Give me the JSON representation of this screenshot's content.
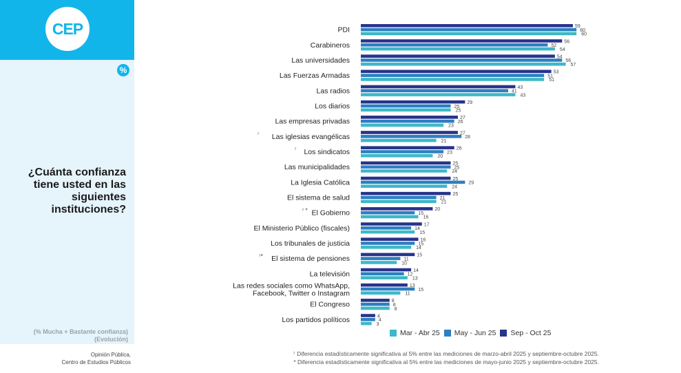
{
  "sidebar": {
    "logo_text": "CEP",
    "percent_badge": "%",
    "question": "¿Cuánta confianza tiene usted en las siguientes instituciones?",
    "subtitle_line1": "(% Mucha + Bastante confianza)",
    "subtitle_line2": "(Evolución)",
    "source_line1": "Opinión Pública,",
    "source_line2": "Centro de Estudios Públicos",
    "brand_color": "#12b5ea"
  },
  "notes": {
    "note1": "⁷ Diferencia estadísticamente significativa al 5% entre las mediciones de marzo-abril 2025 y septiembre-octubre 2025.",
    "note2": "* Diferencia estadísticamente significativa al 5% entre las mediciones de mayo-junio 2025 y septiembre-octubre 2025."
  },
  "chart_data": {
    "type": "bar",
    "orientation": "horizontal",
    "title": "¿Cuánta confianza tiene usted en las siguientes instituciones?",
    "subtitle": "(% Mucha + Bastante confianza) (Evolución)",
    "xlabel": "",
    "ylabel": "",
    "xlim": [
      0,
      62
    ],
    "grid": false,
    "legend_position": "bottom-right",
    "categories": [
      {
        "label": "PDI",
        "marker": ""
      },
      {
        "label": "Carabineros",
        "marker": ""
      },
      {
        "label": "Las universidades",
        "marker": ""
      },
      {
        "label": "Las Fuerzas Armadas",
        "marker": ""
      },
      {
        "label": "Las radios",
        "marker": ""
      },
      {
        "label": "Los diarios",
        "marker": ""
      },
      {
        "label": "Las empresas privadas",
        "marker": ""
      },
      {
        "label": "Las iglesias evangélicas",
        "marker": "⁷"
      },
      {
        "label": "Los sindicatos",
        "marker": "⁷"
      },
      {
        "label": "Las municipalidades",
        "marker": ""
      },
      {
        "label": "La Iglesia Católica",
        "marker": ""
      },
      {
        "label": "El sistema de salud",
        "marker": ""
      },
      {
        "label": "El Gobierno",
        "marker": "⁷ *"
      },
      {
        "label": "El Ministerio Público (fiscales)",
        "marker": ""
      },
      {
        "label": "Los tribunales de justicia",
        "marker": ""
      },
      {
        "label": "El sistema de pensiones",
        "marker": "⁷*"
      },
      {
        "label": "La televisión",
        "marker": ""
      },
      {
        "label": "Las redes sociales como WhatsApp, Facebook, Twitter o Instagram",
        "marker": ""
      },
      {
        "label": "El Congreso",
        "marker": ""
      },
      {
        "label": "Los partidos políticos",
        "marker": ""
      }
    ],
    "series": [
      {
        "name": "Sep - Oct 25",
        "color": "#27348b",
        "values": [
          59,
          56,
          54,
          53,
          43,
          29,
          27,
          27,
          26,
          25,
          25,
          25,
          20,
          17,
          16,
          15,
          14,
          13,
          8,
          4
        ]
      },
      {
        "name": "May - Jun 25",
        "color": "#2d7fc1",
        "values": [
          60,
          52,
          56,
          51,
          41,
          25,
          26,
          28,
          23,
          25,
          29,
          21,
          15,
          14,
          15,
          11,
          12,
          15,
          8,
          4
        ]
      },
      {
        "name": "Mar - Abr 25",
        "color": "#3db8c8",
        "values": [
          60,
          54,
          57,
          51,
          43,
          25,
          23,
          21,
          20,
          24,
          24,
          21,
          16,
          15,
          14,
          10,
          13,
          11,
          8,
          3
        ]
      }
    ],
    "legend": [
      "Mar - Abr 25",
      "May - Jun 25",
      "Sep - Oct 25"
    ]
  }
}
